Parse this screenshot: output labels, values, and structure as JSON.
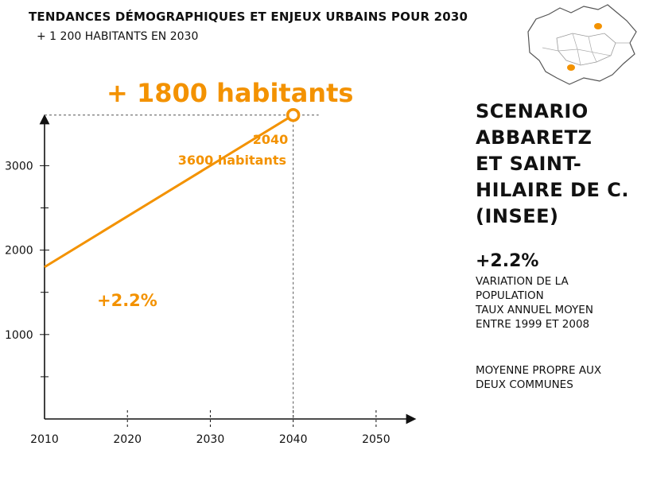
{
  "header": {
    "title": "TENDANCES DÉMOGRAPHIQUES ET ENJEUX URBAINS POUR 2030",
    "subtitle": "+ 1 200 HABITANTS EN 2030"
  },
  "headline": "+ 1800 habitants",
  "chart_data": {
    "type": "line",
    "x_ticks": [
      "2010",
      "2020",
      "2030",
      "2040",
      "2050"
    ],
    "y_ticks": [
      "1000",
      "2000",
      "3000"
    ],
    "xlim": [
      2010,
      2055
    ],
    "ylim": [
      0,
      3550
    ],
    "series": [
      {
        "x": [
          2010,
          2040
        ],
        "y": [
          1800,
          3600
        ],
        "color": "#F39200"
      }
    ],
    "annotations": {
      "end_year": "2040",
      "end_value": "3600 habitants",
      "growth_rate": "+2.2%"
    },
    "highlight_point": {
      "x": 2040,
      "y": 3600
    }
  },
  "scenario": {
    "title_lines": [
      "SCENARIO",
      "ABBARETZ",
      "ET SAINT-",
      "HILAIRE DE C.",
      "(INSEE)"
    ],
    "stat_value": "+2.2%",
    "stat_desc_lines": [
      "VARIATION DE LA",
      "POPULATION",
      "TAUX ANNUEL MOYEN",
      "ENTRE 1999 ET 2008"
    ],
    "note_lines": [
      "MOYENNE PROPRE AUX",
      "DEUX COMMUNES"
    ]
  },
  "colors": {
    "accent": "#F39200",
    "text": "#111111",
    "axis": "#111111"
  }
}
